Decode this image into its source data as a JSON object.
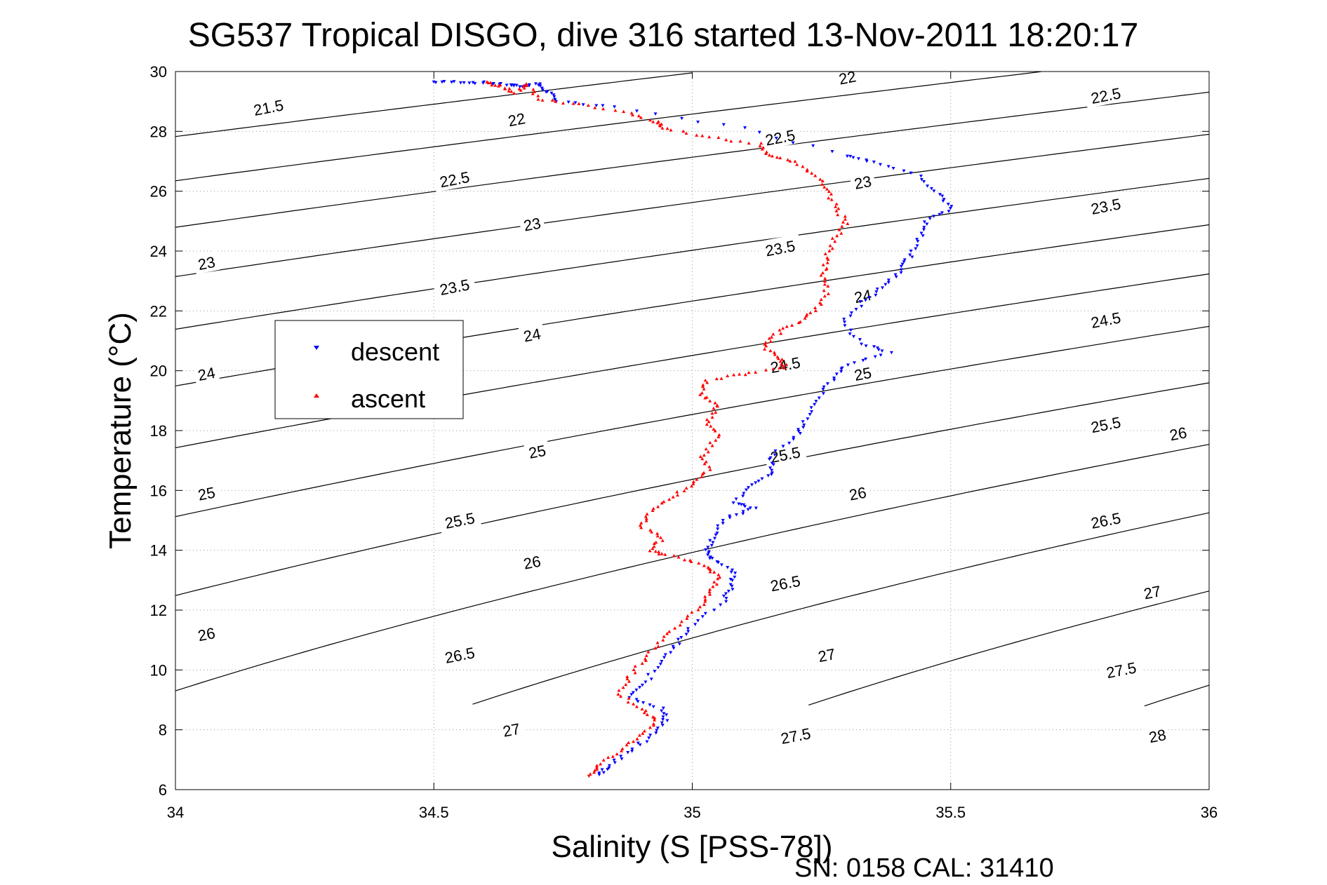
{
  "chart_data": {
    "type": "scatter",
    "title": "SG537 Tropical DISGO, dive 316 started 13-Nov-2011 18:20:17",
    "xlabel": "Salinity (S [PSS-78])",
    "ylabel": "Temperature (°C)",
    "footer": "SN: 0158  CAL: 31410",
    "xlim": [
      34,
      36
    ],
    "ylim": [
      6,
      30
    ],
    "xticks": [
      34,
      34.5,
      35,
      35.5,
      36
    ],
    "yticks": [
      6,
      8,
      10,
      12,
      14,
      16,
      18,
      20,
      22,
      24,
      26,
      28,
      30
    ],
    "xtick_labels": [
      "34",
      "34.5",
      "35",
      "35.5",
      "36"
    ],
    "ytick_labels": [
      "6",
      "8",
      "10",
      "12",
      "14",
      "16",
      "18",
      "20",
      "22",
      "24",
      "26",
      "28",
      "30"
    ],
    "grid": true,
    "grid_style": "dotted",
    "legend_position": "middle-left",
    "contours": {
      "variable": "sigma-theta",
      "color": "#000000",
      "levels": [
        21.5,
        22,
        22.5,
        23,
        23.5,
        24,
        24.5,
        25,
        25.5,
        26,
        26.5,
        27,
        27.5,
        28
      ],
      "labels": [
        {
          "text": "21.5",
          "s": 34.18,
          "t": 28.8
        },
        {
          "text": "22",
          "s": 34.66,
          "t": 28.4
        },
        {
          "text": "22",
          "s": 35.3,
          "t": 29.8
        },
        {
          "text": "22.5",
          "s": 34.54,
          "t": 26.4
        },
        {
          "text": "22.5",
          "s": 35.17,
          "t": 27.8
        },
        {
          "text": "22.5",
          "s": 35.8,
          "t": 29.2
        },
        {
          "text": "23",
          "s": 34.06,
          "t": 23.6
        },
        {
          "text": "23",
          "s": 34.69,
          "t": 24.9
        },
        {
          "text": "23",
          "s": 35.33,
          "t": 26.3
        },
        {
          "text": "23.5",
          "s": 34.54,
          "t": 22.8
        },
        {
          "text": "23.5",
          "s": 35.17,
          "t": 24.1
        },
        {
          "text": "23.5",
          "s": 35.8,
          "t": 25.5
        },
        {
          "text": "24",
          "s": 34.06,
          "t": 19.9
        },
        {
          "text": "24",
          "s": 34.69,
          "t": 21.2
        },
        {
          "text": "24",
          "s": 35.33,
          "t": 22.5
        },
        {
          "text": "24.5",
          "s": 35.18,
          "t": 20.2
        },
        {
          "text": "24.5",
          "s": 35.8,
          "t": 21.7
        },
        {
          "text": "25",
          "s": 34.06,
          "t": 15.9
        },
        {
          "text": "25",
          "s": 34.7,
          "t": 17.3
        },
        {
          "text": "25",
          "s": 35.33,
          "t": 19.9
        },
        {
          "text": "25.5",
          "s": 34.55,
          "t": 15.0
        },
        {
          "text": "25.5",
          "s": 35.18,
          "t": 17.2
        },
        {
          "text": "25.5",
          "s": 35.8,
          "t": 18.2
        },
        {
          "text": "26",
          "s": 34.06,
          "t": 11.2
        },
        {
          "text": "26",
          "s": 34.69,
          "t": 13.6
        },
        {
          "text": "26",
          "s": 35.32,
          "t": 15.9
        },
        {
          "text": "26",
          "s": 35.94,
          "t": 17.9
        },
        {
          "text": "26.5",
          "s": 34.55,
          "t": 10.5
        },
        {
          "text": "26.5",
          "s": 35.18,
          "t": 12.9
        },
        {
          "text": "26.5",
          "s": 35.8,
          "t": 15.0
        },
        {
          "text": "27",
          "s": 34.65,
          "t": 8.0
        },
        {
          "text": "27",
          "s": 35.26,
          "t": 10.5
        },
        {
          "text": "27",
          "s": 35.89,
          "t": 12.6
        },
        {
          "text": "27.5",
          "s": 35.2,
          "t": 7.8
        },
        {
          "text": "27.5",
          "s": 35.83,
          "t": 10.0
        },
        {
          "text": "28",
          "s": 35.9,
          "t": 7.8
        }
      ]
    },
    "series": [
      {
        "name": "descent",
        "color": "#0000ff",
        "marker": "triangle-down",
        "points": [
          [
            34.5,
            29.65
          ],
          [
            34.55,
            29.65
          ],
          [
            34.6,
            29.62
          ],
          [
            34.65,
            29.55
          ],
          [
            34.67,
            29.5
          ],
          [
            34.7,
            29.6
          ],
          [
            34.72,
            29.3
          ],
          [
            34.74,
            29.0
          ],
          [
            34.85,
            28.8
          ],
          [
            35.1,
            28.1
          ],
          [
            35.3,
            27.2
          ],
          [
            35.35,
            27.0
          ],
          [
            35.44,
            26.5
          ],
          [
            35.48,
            25.9
          ],
          [
            35.5,
            25.4
          ],
          [
            35.45,
            25.0
          ],
          [
            35.44,
            24.4
          ],
          [
            35.42,
            23.8
          ],
          [
            35.4,
            23.3
          ],
          [
            35.37,
            22.8
          ],
          [
            35.33,
            22.3
          ],
          [
            35.29,
            21.6
          ],
          [
            35.33,
            20.9
          ],
          [
            35.38,
            20.6
          ],
          [
            35.3,
            20.2
          ],
          [
            35.27,
            19.7
          ],
          [
            35.24,
            19.0
          ],
          [
            35.22,
            18.3
          ],
          [
            35.2,
            17.8
          ],
          [
            35.15,
            17.1
          ],
          [
            35.16,
            16.6
          ],
          [
            35.12,
            16.2
          ],
          [
            35.08,
            15.6
          ],
          [
            35.12,
            15.4
          ],
          [
            35.07,
            15.1
          ],
          [
            35.04,
            14.5
          ],
          [
            35.03,
            14.0
          ],
          [
            35.04,
            13.7
          ],
          [
            35.08,
            13.3
          ],
          [
            35.08,
            12.8
          ],
          [
            35.06,
            12.3
          ],
          [
            35.0,
            11.5
          ],
          [
            34.97,
            10.9
          ],
          [
            34.94,
            10.3
          ],
          [
            34.91,
            9.6
          ],
          [
            34.88,
            9.1
          ],
          [
            34.94,
            8.7
          ],
          [
            34.95,
            8.3
          ],
          [
            34.92,
            7.8
          ],
          [
            34.88,
            7.3
          ],
          [
            34.84,
            6.8
          ],
          [
            34.82,
            6.5
          ]
        ]
      },
      {
        "name": "ascent",
        "color": "#ff0000",
        "marker": "triangle-up",
        "points": [
          [
            34.6,
            29.65
          ],
          [
            34.63,
            29.5
          ],
          [
            34.66,
            29.3
          ],
          [
            34.68,
            29.6
          ],
          [
            34.7,
            29.1
          ],
          [
            34.78,
            28.9
          ],
          [
            34.88,
            28.6
          ],
          [
            34.93,
            28.3
          ],
          [
            34.95,
            28.1
          ],
          [
            35.03,
            27.8
          ],
          [
            35.13,
            27.6
          ],
          [
            35.15,
            27.2
          ],
          [
            35.2,
            27.0
          ],
          [
            35.24,
            26.5
          ],
          [
            35.26,
            26.0
          ],
          [
            35.28,
            25.4
          ],
          [
            35.3,
            24.9
          ],
          [
            35.27,
            24.3
          ],
          [
            35.26,
            23.7
          ],
          [
            35.25,
            23.2
          ],
          [
            35.26,
            22.6
          ],
          [
            35.24,
            22.0
          ],
          [
            35.2,
            21.6
          ],
          [
            35.16,
            21.2
          ],
          [
            35.14,
            20.8
          ],
          [
            35.17,
            20.4
          ],
          [
            35.18,
            20.1
          ],
          [
            35.1,
            19.9
          ],
          [
            35.03,
            19.7
          ],
          [
            35.02,
            19.2
          ],
          [
            35.05,
            18.8
          ],
          [
            35.03,
            18.3
          ],
          [
            35.05,
            17.8
          ],
          [
            35.02,
            17.2
          ],
          [
            35.03,
            16.7
          ],
          [
            35.0,
            16.2
          ],
          [
            34.96,
            15.8
          ],
          [
            34.92,
            15.3
          ],
          [
            34.9,
            14.8
          ],
          [
            34.94,
            14.4
          ],
          [
            34.92,
            14.0
          ],
          [
            34.96,
            13.8
          ],
          [
            35.02,
            13.5
          ],
          [
            35.05,
            13.2
          ],
          [
            35.04,
            12.7
          ],
          [
            35.02,
            12.2
          ],
          [
            34.98,
            11.6
          ],
          [
            34.94,
            11.0
          ],
          [
            34.91,
            10.4
          ],
          [
            34.88,
            9.8
          ],
          [
            34.86,
            9.2
          ],
          [
            34.9,
            8.7
          ],
          [
            34.93,
            8.3
          ],
          [
            34.9,
            7.8
          ],
          [
            34.86,
            7.3
          ],
          [
            34.82,
            6.8
          ],
          [
            34.8,
            6.45
          ]
        ]
      }
    ]
  }
}
